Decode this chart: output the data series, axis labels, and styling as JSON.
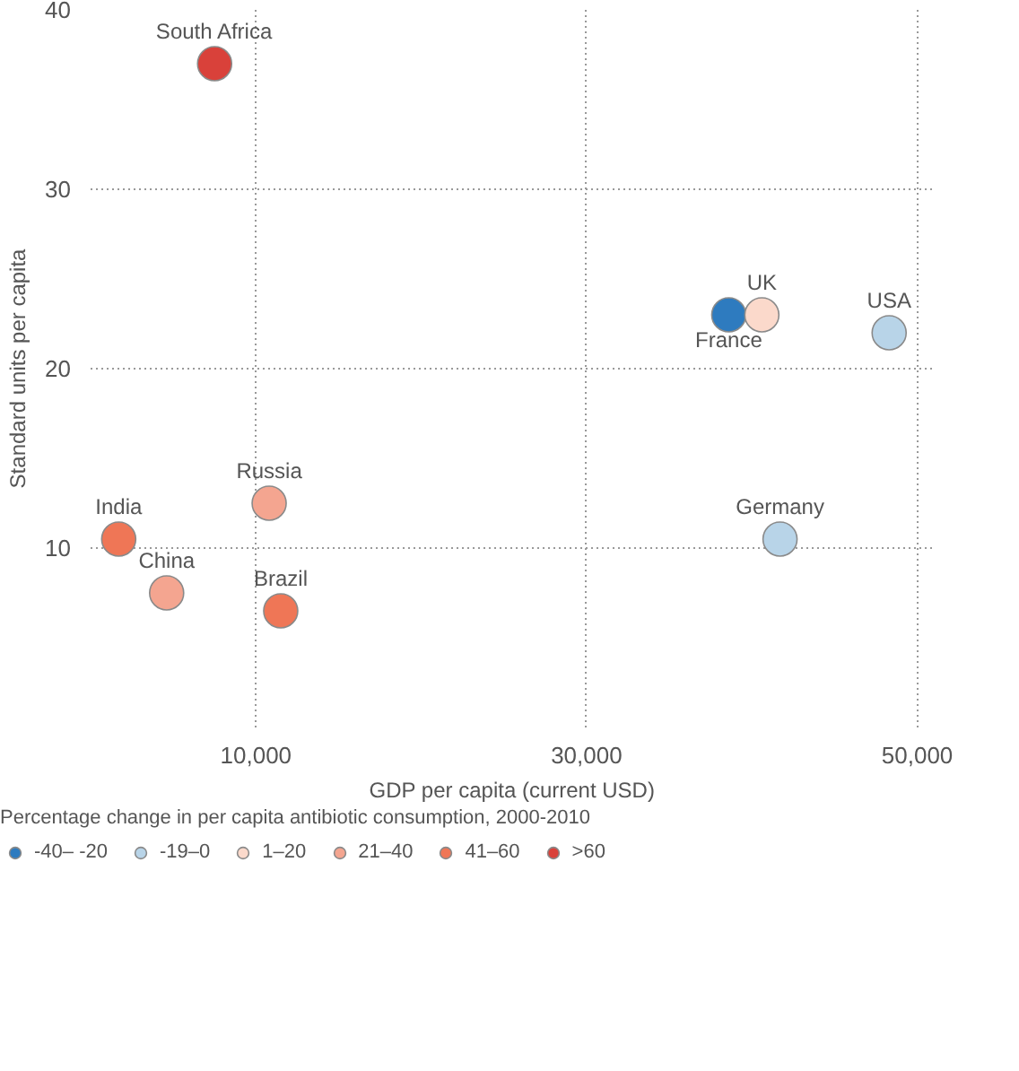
{
  "chart_data": {
    "type": "scatter",
    "xlabel": "GDP per capita (current USD)",
    "ylabel": "Standard units per capita",
    "legend_title": "Percentage change in per capita antibiotic consumption, 2000-2010",
    "xlim": [
      0,
      51000
    ],
    "ylim": [
      0,
      40
    ],
    "xticks": [
      {
        "value": 10000,
        "label": "10,000"
      },
      {
        "value": 30000,
        "label": "30,000"
      },
      {
        "value": 50000,
        "label": "50,000"
      }
    ],
    "yticks": [
      10,
      20,
      30,
      40
    ],
    "grid": true,
    "legend": "bottom",
    "marker": "circle",
    "series": [
      {
        "name": "-40– -20",
        "color": "#2e7bbf",
        "x": [
          38600
        ],
        "values": [
          23
        ]
      },
      {
        "name": "-19–0",
        "color": "#b8d4e8",
        "x": [
          48300,
          41700
        ],
        "values": [
          22,
          10.5
        ]
      },
      {
        "name": "1–20",
        "color": "#fbd9cb",
        "x": [
          40600
        ],
        "values": [
          23
        ]
      },
      {
        "name": "21–40",
        "color": "#f4a590",
        "x": [
          10800,
          4600
        ],
        "values": [
          12.5,
          7.5
        ]
      },
      {
        "name": "41–60",
        "color": "#ef7656",
        "x": [
          1700,
          11500
        ],
        "values": [
          10.5,
          6.5
        ]
      },
      {
        "name": ">60",
        "color": "#d9413a",
        "x": [
          7500
        ],
        "values": [
          37
        ]
      }
    ],
    "annotations": [
      {
        "text": "South Africa",
        "x": 7500,
        "y": 37
      },
      {
        "text": "India",
        "x": 1700,
        "y": 10.5
      },
      {
        "text": "China",
        "x": 4600,
        "y": 7.5
      },
      {
        "text": "Russia",
        "x": 10800,
        "y": 12.5
      },
      {
        "text": "Brazil",
        "x": 11500,
        "y": 6.5
      },
      {
        "text": "France",
        "x": 38600,
        "y": 23
      },
      {
        "text": "UK",
        "x": 40600,
        "y": 23
      },
      {
        "text": "USA",
        "x": 48300,
        "y": 22
      },
      {
        "text": "Germany",
        "x": 41700,
        "y": 10.5
      }
    ]
  }
}
